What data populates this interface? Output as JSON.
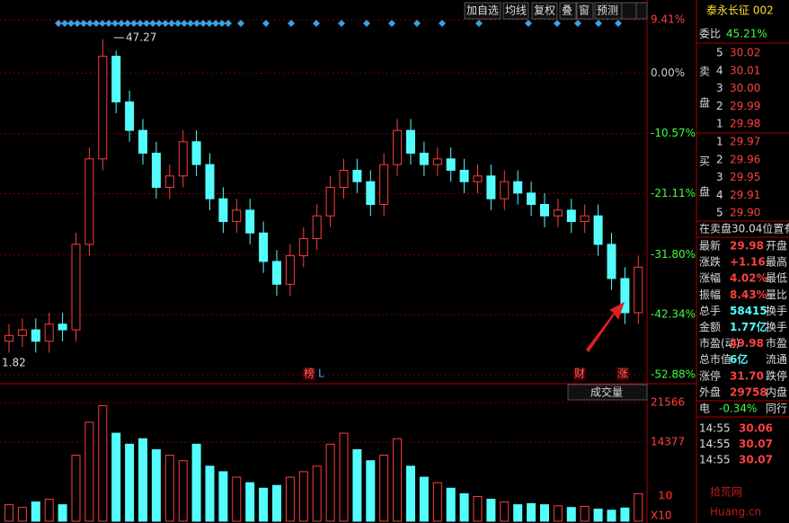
{
  "toolbar": [
    "加自选",
    "均线",
    "复权",
    "叠",
    "窗",
    "预测"
  ],
  "chart_data": {
    "type": "candlestick",
    "ylim": [
      -52.88,
      9.41
    ],
    "yticks": [
      {
        "value": 9.41,
        "label": "9.41%"
      },
      {
        "value": 0,
        "label": "0.00%"
      },
      {
        "value": -10.57,
        "label": "-10.57%"
      },
      {
        "value": -21.11,
        "label": "-21.11%"
      },
      {
        "value": -31.8,
        "label": "-31.80%"
      },
      {
        "value": -42.34,
        "label": "-42.34%"
      },
      {
        "value": -52.88,
        "label": "-52.88%"
      }
    ],
    "open": [
      -47,
      -46,
      -45,
      -47,
      -44,
      -45,
      -30,
      -15,
      3,
      -5,
      -10,
      -14,
      -20,
      -18,
      -12,
      -16,
      -22,
      -26,
      -24,
      -28,
      -33,
      -37,
      -32,
      -29,
      -25,
      -20,
      -17,
      -19,
      -23,
      -16,
      -10,
      -14,
      -16,
      -15,
      -17,
      -19,
      -18,
      -22,
      -19,
      -21,
      -23,
      -25,
      -24,
      -26,
      -25,
      -30,
      -36,
      -42
    ],
    "high": [
      -44,
      -43,
      -43,
      -42,
      -42,
      -28,
      -13,
      6,
      4,
      -3,
      -8,
      -12,
      -16,
      -10,
      -10,
      -14,
      -20,
      -22,
      -22,
      -26,
      -31,
      -30,
      -27,
      -23,
      -18,
      -15,
      -15,
      -17,
      -14,
      -8,
      -8,
      -12,
      -13,
      -13,
      -15,
      -16,
      -16,
      -17,
      -17,
      -19,
      -21,
      -22,
      -22,
      -23,
      -23,
      -28,
      -34,
      -32
    ],
    "low": [
      -49,
      -48,
      -49,
      -49,
      -47,
      -47,
      -32,
      -17,
      -7,
      -12,
      -16,
      -22,
      -22,
      -20,
      -18,
      -24,
      -28,
      -28,
      -30,
      -35,
      -39,
      -39,
      -34,
      -31,
      -27,
      -22,
      -21,
      -25,
      -25,
      -18,
      -16,
      -18,
      -18,
      -19,
      -21,
      -21,
      -24,
      -24,
      -23,
      -25,
      -27,
      -27,
      -28,
      -28,
      -32,
      -38,
      -44,
      -44
    ],
    "close": [
      -46,
      -45,
      -47,
      -44,
      -45,
      -30,
      -15,
      3,
      -5,
      -10,
      -14,
      -20,
      -18,
      -12,
      -16,
      -22,
      -26,
      -24,
      -28,
      -33,
      -37,
      -32,
      -29,
      -25,
      -20,
      -17,
      -19,
      -23,
      -16,
      -10,
      -14,
      -16,
      -15,
      -17,
      -19,
      -18,
      -22,
      -19,
      -21,
      -23,
      -25,
      -24,
      -26,
      -25,
      -30,
      -36,
      -42,
      -34
    ],
    "annotations": {
      "max": "47.27",
      "min": "1.82",
      "bang": "榜",
      "l": "L",
      "cai": "财",
      "zhang": "涨"
    },
    "volume": {
      "label": "成交量",
      "scale": "X10",
      "values": [
        3000,
        2500,
        3500,
        4000,
        3000,
        12000,
        18000,
        21000,
        16000,
        14000,
        15000,
        13000,
        12000,
        11000,
        14000,
        10000,
        9000,
        8000,
        7000,
        6000,
        6500,
        8000,
        9000,
        10000,
        14000,
        16000,
        13000,
        11000,
        12000,
        15000,
        10000,
        8000,
        7000,
        6000,
        5000,
        4500,
        4000,
        3500,
        3000,
        3200,
        3000,
        2800,
        2500,
        2700,
        2200,
        2000,
        2400,
        5000
      ],
      "ylim": [
        0,
        21566
      ],
      "yticks": [
        21566,
        14377
      ]
    },
    "up_color": "#ff3c3c",
    "down_color": "#54fcfc"
  },
  "quote": {
    "name": "泰永长征 002",
    "wb_label": "委比",
    "wb": "45.21%",
    "sell_label": [
      "卖",
      "盘"
    ],
    "sell": [
      [
        "5",
        "30.02"
      ],
      [
        "4",
        "30.01"
      ],
      [
        "3",
        "30.00"
      ],
      [
        "2",
        "29.99"
      ],
      [
        "1",
        "29.98"
      ]
    ],
    "buy_label": [
      "买",
      "盘"
    ],
    "buy": [
      [
        "1",
        "29.97"
      ],
      [
        "2",
        "29.96"
      ],
      [
        "3",
        "29.95"
      ],
      [
        "4",
        "29.91"
      ],
      [
        "5",
        "29.90"
      ]
    ],
    "notice": "在卖盘30.04位置有",
    "stats": [
      [
        "最新",
        "29.98",
        "开盘"
      ],
      [
        "涨跌",
        "+1.16",
        "最高"
      ],
      [
        "涨幅",
        "4.02%",
        "最低"
      ],
      [
        "振幅",
        "8.43%",
        "量比"
      ],
      [
        "总手",
        "58415",
        "换手"
      ],
      [
        "金额",
        "1.77亿",
        "换手"
      ],
      [
        "市盈(动)",
        "49.98",
        "市盈"
      ],
      [
        "总市值",
        "6亿",
        "流通"
      ],
      [
        "涨停",
        "31.70",
        "跌停"
      ],
      [
        "外盘",
        "29758",
        "内盘"
      ]
    ],
    "sector": [
      "电",
      "-0.34%",
      "同行"
    ],
    "ticks": [
      [
        "14:55",
        "30.06"
      ],
      [
        "14:55",
        "30.07"
      ],
      [
        "14:55",
        "30.07"
      ]
    ]
  },
  "watermark": [
    "10",
    "拾荒网",
    "Huang.cn"
  ]
}
